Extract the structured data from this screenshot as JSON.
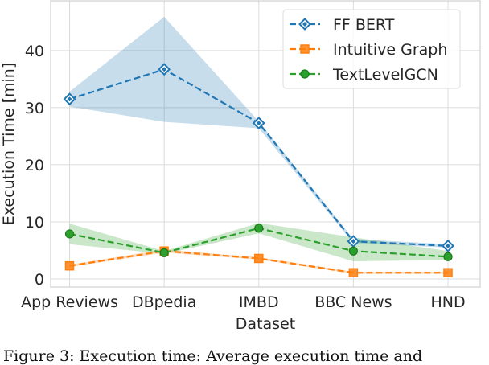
{
  "chart_data": {
    "type": "line",
    "title": "",
    "xlabel": "Dataset",
    "ylabel": "Execution Time [min]",
    "categories": [
      "App Reviews",
      "DBpedia",
      "IMBD",
      "BBC News",
      "HND"
    ],
    "ylim": [
      -1.4,
      48.7
    ],
    "yticks": [
      0,
      10,
      20,
      30,
      40
    ],
    "grid": true,
    "legend_position": "top-right",
    "series": [
      {
        "name": "FF BERT",
        "color": "#1f77b4",
        "marker": "diamond",
        "values": [
          31.5,
          36.7,
          27.3,
          6.6,
          5.8
        ],
        "band_low": [
          30.2,
          27.5,
          26.4,
          6.3,
          5.5
        ],
        "band_high": [
          32.8,
          45.9,
          27.6,
          7.0,
          6.1
        ]
      },
      {
        "name": "Intuitive Graph",
        "color": "#ff7f0e",
        "marker": "square",
        "values": [
          2.3,
          4.9,
          3.6,
          1.1,
          1.1
        ],
        "band_low": [
          2.1,
          4.6,
          3.4,
          0.9,
          0.9
        ],
        "band_high": [
          2.5,
          5.2,
          3.8,
          1.3,
          1.3
        ]
      },
      {
        "name": "TextLevelGCN",
        "color": "#2ca02c",
        "marker": "circle",
        "values": [
          7.9,
          4.6,
          8.9,
          4.9,
          3.9
        ],
        "band_low": [
          6.1,
          4.4,
          8.0,
          3.1,
          3.3
        ],
        "band_high": [
          9.7,
          4.9,
          9.8,
          7.3,
          4.9
        ]
      }
    ]
  },
  "caption": "Figure 3: Execution time: Average execution time and"
}
